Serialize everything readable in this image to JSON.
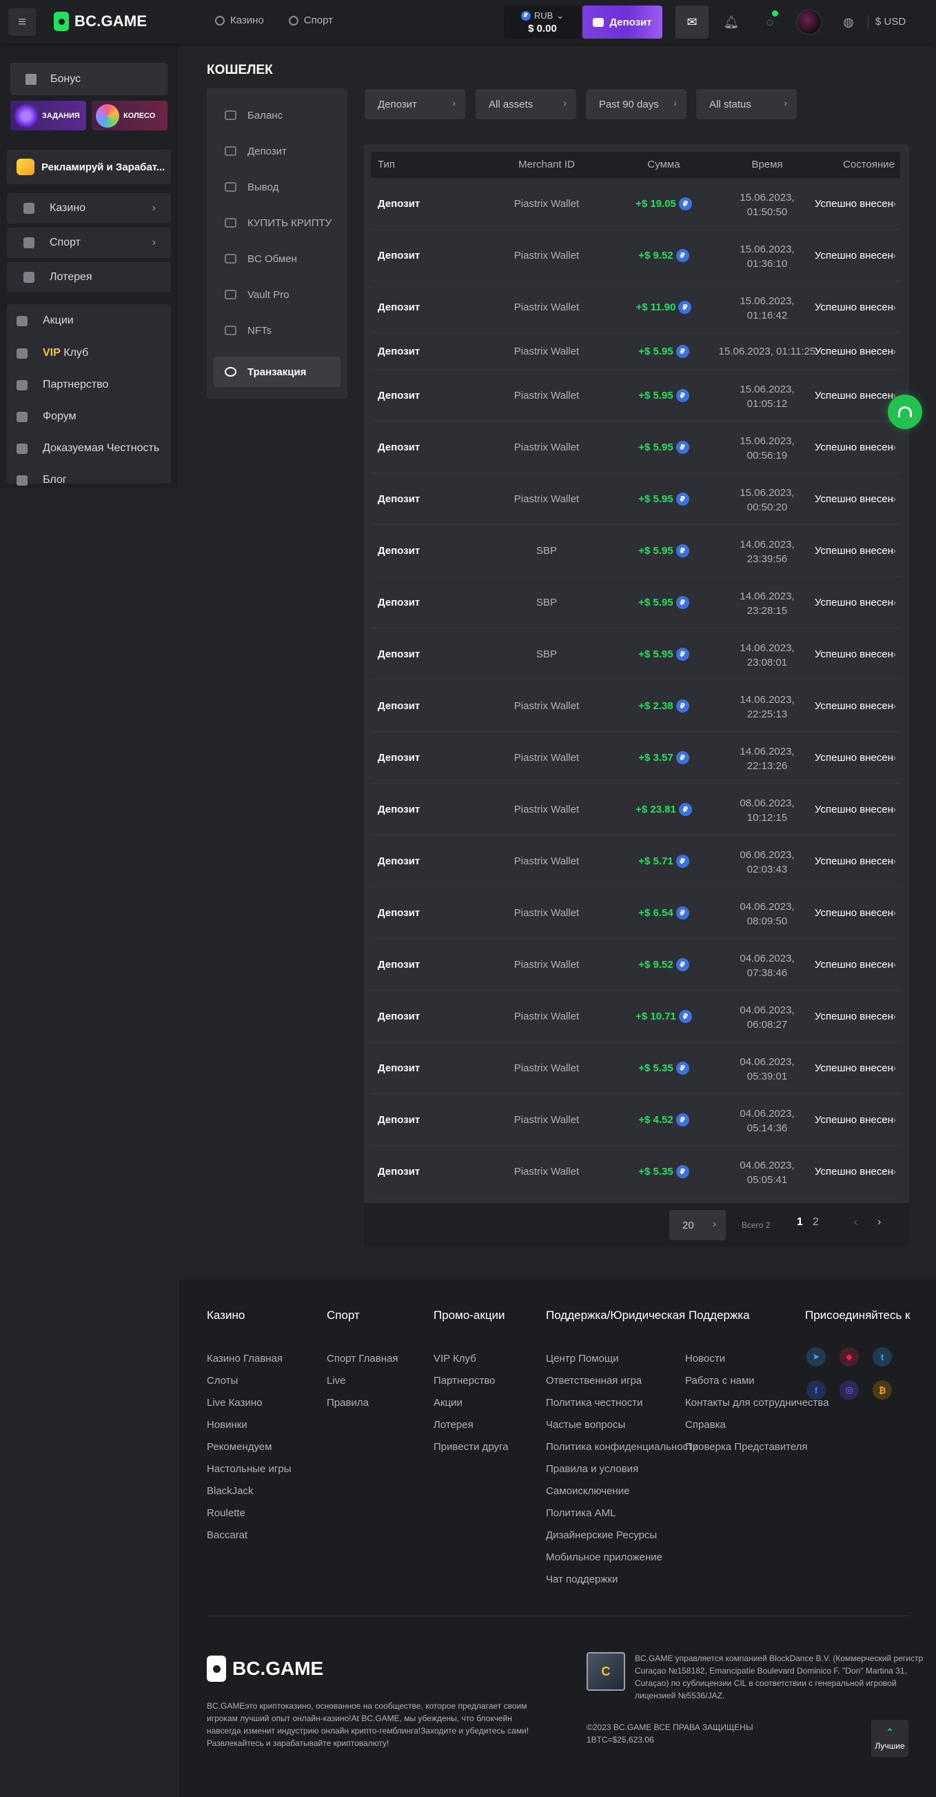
{
  "header": {
    "logo": "BC.GAME",
    "nav": [
      "Казино",
      "Спорт"
    ],
    "balance_currency": "RUB",
    "balance_amount": "$ 0.00",
    "deposit_label": "Депозит",
    "currency_label": "$ USD"
  },
  "sidebar": {
    "bonus": "Бонус",
    "tasks": "ЗАДАНИЯ",
    "wheel": "КОЛЕСО",
    "refer": "Рекламируй и Зарабат...",
    "casino": "Казино",
    "sport": "Спорт",
    "lottery": "Лотерея",
    "promotions": "Акции",
    "vip": "VIP",
    "club": "Клуб",
    "partnership": "Партнерство",
    "forum": "Форум",
    "fairness": "Доказуемая Честность",
    "blog": "Блог"
  },
  "wallet": {
    "title": "КОШЕЛЕК",
    "menu": [
      "Баланс",
      "Депозит",
      "Вывод",
      "КУПИТЬ КРИПТУ",
      "BC Обмен",
      "Vault Pro",
      "NFTs",
      "Транзакция"
    ],
    "filters": [
      "Депозит",
      "All assets",
      "Past 90 days",
      "All status"
    ],
    "columns": [
      "Тип",
      "Merchant ID",
      "Сумма",
      "Время",
      "Состояние"
    ],
    "rows": [
      {
        "type": "Депозит",
        "merchant": "Piastrix Wallet",
        "amount": "+$ 19.05",
        "d": "15.06.2023,",
        "t": "01:50:50",
        "status": "Успешно внесен"
      },
      {
        "type": "Депозит",
        "merchant": "Piastrix Wallet",
        "amount": "+$ 9.52",
        "d": "15.06.2023,",
        "t": "01:36:10",
        "status": "Успешно внесен"
      },
      {
        "type": "Депозит",
        "merchant": "Piastrix Wallet",
        "amount": "+$ 11.90",
        "d": "15.06.2023,",
        "t": "01:16:42",
        "status": "Успешно внесен"
      },
      {
        "type": "Депозит",
        "merchant": "Piastrix Wallet",
        "amount": "+$ 5.95",
        "d": "15.06.2023, 01:11:25",
        "t": "",
        "status": "Успешно внесен"
      },
      {
        "type": "Депозит",
        "merchant": "Piastrix Wallet",
        "amount": "+$ 5.95",
        "d": "15.06.2023,",
        "t": "01:05:12",
        "status": "Успешно внесен"
      },
      {
        "type": "Депозит",
        "merchant": "Piastrix Wallet",
        "amount": "+$ 5.95",
        "d": "15.06.2023,",
        "t": "00:56:19",
        "status": "Успешно внесен"
      },
      {
        "type": "Депозит",
        "merchant": "Piastrix Wallet",
        "amount": "+$ 5.95",
        "d": "15.06.2023,",
        "t": "00:50:20",
        "status": "Успешно внесен"
      },
      {
        "type": "Депозит",
        "merchant": "SBP",
        "amount": "+$ 5.95",
        "d": "14.06.2023,",
        "t": "23:39:56",
        "status": "Успешно внесен"
      },
      {
        "type": "Депозит",
        "merchant": "SBP",
        "amount": "+$ 5.95",
        "d": "14.06.2023,",
        "t": "23:28:15",
        "status": "Успешно внесен"
      },
      {
        "type": "Депозит",
        "merchant": "SBP",
        "amount": "+$ 5.95",
        "d": "14.06.2023,",
        "t": "23:08:01",
        "status": "Успешно внесен"
      },
      {
        "type": "Депозит",
        "merchant": "Piastrix Wallet",
        "amount": "+$ 2.38",
        "d": "14.06.2023,",
        "t": "22:25:13",
        "status": "Успешно внесен"
      },
      {
        "type": "Депозит",
        "merchant": "Piastrix Wallet",
        "amount": "+$ 3.57",
        "d": "14.06.2023,",
        "t": "22:13:26",
        "status": "Успешно внесен"
      },
      {
        "type": "Депозит",
        "merchant": "Piastrix Wallet",
        "amount": "+$ 23.81",
        "d": "08.06.2023,",
        "t": "10:12:15",
        "status": "Успешно внесен"
      },
      {
        "type": "Депозит",
        "merchant": "Piastrix Wallet",
        "amount": "+$ 5.71",
        "d": "06.06.2023,",
        "t": "02:03:43",
        "status": "Успешно внесен"
      },
      {
        "type": "Депозит",
        "merchant": "Piastrix Wallet",
        "amount": "+$ 6.54",
        "d": "04.06.2023,",
        "t": "08:09:50",
        "status": "Успешно внесен"
      },
      {
        "type": "Депозит",
        "merchant": "Piastrix Wallet",
        "amount": "+$ 9.52",
        "d": "04.06.2023,",
        "t": "07:38:46",
        "status": "Успешно внесен"
      },
      {
        "type": "Депозит",
        "merchant": "Piastrix Wallet",
        "amount": "+$ 10.71",
        "d": "04.06.2023,",
        "t": "06:08:27",
        "status": "Успешно внесен"
      },
      {
        "type": "Депозит",
        "merchant": "Piastrix Wallet",
        "amount": "+$ 5.35",
        "d": "04.06.2023,",
        "t": "05:39:01",
        "status": "Успешно внесен"
      },
      {
        "type": "Депозит",
        "merchant": "Piastrix Wallet",
        "amount": "+$ 4.52",
        "d": "04.06.2023,",
        "t": "05:14:36",
        "status": "Успешно внесен"
      },
      {
        "type": "Депозит",
        "merchant": "Piastrix Wallet",
        "amount": "+$ 5.35",
        "d": "04.06.2023,",
        "t": "05:05:41",
        "status": "Успешно внесен"
      }
    ],
    "per_page": "20",
    "total": "Всего 2",
    "pages": [
      "1",
      "2"
    ]
  },
  "footer": {
    "cols": [
      {
        "title": "Казино",
        "links": [
          "Казино Главная",
          "Слоты",
          "Live Казино",
          "Новинки",
          "Рекомендуем",
          "Настольные игры",
          "BlackJack",
          "Roulette",
          "Baccarat"
        ]
      },
      {
        "title": "Спорт",
        "links": [
          "Спорт Главная",
          "Live",
          "Правила"
        ]
      },
      {
        "title": "Промо-акции",
        "links": [
          "VIP Клуб",
          "Партнерство",
          "Акции",
          "Лотерея",
          "Привести друга"
        ]
      },
      {
        "title": "Поддержка/Юридическая Поддержка",
        "links": [
          "Центр Помощи",
          "Ответственная игра",
          "Политика честности",
          "Частые вопросы",
          "Политика конфиденциальности",
          "Правила и условия",
          "Самоисключение",
          "Политика AML",
          "Дизайнерские Ресурсы",
          "Мобильное приложение",
          "Чат поддержки"
        ]
      },
      {
        "title": "",
        "links": [
          "Новости",
          "Работа с нами",
          "Контакты для сотрудничества",
          "Справка",
          "Проверка Представителя"
        ]
      },
      {
        "title": "Присоединяйтесь к",
        "links": []
      }
    ],
    "logo": "BC.GAME",
    "description": "BC.GAMEэто криптоказино, основанное на сообществе, которое предлагает своим игрокам лучший опыт онлайн-казино!At BC.GAME, мы убеждены, что блокчейн навсегда изменит индустрию онлайн крипто-гемблинга!Заходите и убедитесь сами!Развлекайтесь и зарабатывайте криптовалюту!",
    "legal": "BC.GAME управляется компанией BlockDance B.V. (Коммерческий регистр Curaçao №158182, Emancipatie Boulevard Dominico F. \"Don\" Martina 31, Curaçao) по сублицензии CIL в соответствии с генеральной игровой лицензией №5536/JAZ.",
    "copyright": "©2023 BC.GAME ВСЕ ПРАВА ЗАЩИЩЕНЫ",
    "btc_rate": "1BTC=$25,623.06",
    "best": "Лучшие"
  },
  "colors": {
    "accent_green": "#23e05e",
    "deposit_purple": "#7c3fe0",
    "coin_blue": "#3b72e0",
    "vip_gold": "#f6c444"
  },
  "icons": [
    "menu-icon",
    "casino-icon",
    "sport-icon",
    "mail-icon",
    "bell-icon",
    "chat-icon",
    "globe-icon",
    "gift-icon",
    "headset-icon",
    "telegram-icon",
    "discord-icon",
    "facebook-icon",
    "twitter-icon",
    "bitcoin-icon"
  ]
}
